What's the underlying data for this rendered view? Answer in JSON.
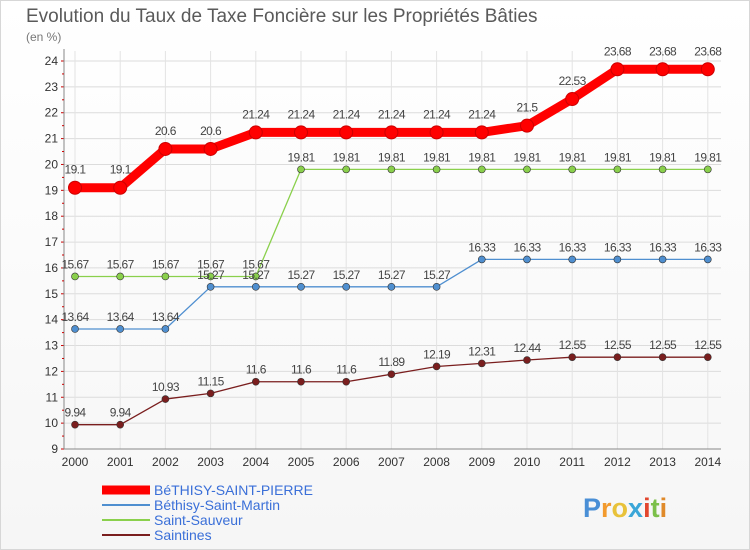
{
  "chart_data": {
    "type": "line",
    "title": "Evolution du Taux de Taxe Foncière sur les Propriétés Bâties",
    "unit_label": "(en %)",
    "xlabel": "",
    "ylabel": "",
    "x": [
      "2000",
      "2001",
      "2002",
      "2003",
      "2004",
      "2005",
      "2006",
      "2007",
      "2008",
      "2009",
      "2010",
      "2011",
      "2012",
      "2013",
      "2014"
    ],
    "ylim": [
      9,
      24
    ],
    "yticks": [
      9,
      10,
      11,
      12,
      13,
      14,
      15,
      16,
      17,
      18,
      19,
      20,
      21,
      22,
      23,
      24
    ],
    "grid": true,
    "series": [
      {
        "name": "BéTHISY-SAINT-PIERRE",
        "color": "#ff0000",
        "values": [
          19.1,
          19.1,
          20.6,
          20.6,
          21.24,
          21.24,
          21.24,
          21.24,
          21.24,
          21.24,
          21.5,
          22.53,
          23.68,
          23.68,
          23.68
        ],
        "labels": [
          "19.1",
          "19.1",
          "20.6",
          "20.6",
          "21.24",
          "21.24",
          "21.24",
          "21.24",
          "21.24",
          "21.24",
          "21.5",
          "22.53",
          "23.68",
          "23.68",
          "23.68"
        ]
      },
      {
        "name": "Béthisy-Saint-Martin",
        "color": "#4f8fd0",
        "values": [
          13.64,
          13.64,
          13.64,
          15.27,
          15.27,
          15.27,
          15.27,
          15.27,
          15.27,
          16.33,
          16.33,
          16.33,
          16.33,
          16.33,
          16.33
        ],
        "labels": [
          "13.64",
          "13.64",
          "13.64",
          "15.27",
          "15.27",
          "15.27",
          "15.27",
          "15.27",
          "15.27",
          "16.33",
          "16.33",
          "16.33",
          "16.33",
          "16.33",
          "16.33"
        ]
      },
      {
        "name": "Saint-Sauveur",
        "color": "#8ad04c",
        "values": [
          15.67,
          15.67,
          15.67,
          15.67,
          15.67,
          19.81,
          19.81,
          19.81,
          19.81,
          19.81,
          19.81,
          19.81,
          19.81,
          19.81,
          19.81
        ],
        "labels": [
          "15.67",
          "15.67",
          "15.67",
          "15.67",
          "15.67",
          "19.81",
          "19.81",
          "19.81",
          "19.81",
          "19.81",
          "19.81",
          "19.81",
          "19.81",
          "19.81",
          "19.81"
        ]
      },
      {
        "name": "Saintines",
        "color": "#7a1e1e",
        "values": [
          9.94,
          9.94,
          10.93,
          11.15,
          11.6,
          11.6,
          11.6,
          11.89,
          12.19,
          12.31,
          12.44,
          12.55,
          12.55,
          12.55,
          12.55
        ],
        "labels": [
          "9.94",
          "9.94",
          "10.93",
          "11.15",
          "11.6",
          "11.6",
          "11.6",
          "11.89",
          "12.19",
          "12.31",
          "12.44",
          "12.55",
          "12.55",
          "12.55",
          "12.55"
        ]
      }
    ],
    "legend_position": "bottom-left"
  },
  "logo": {
    "text": "Proxiti"
  }
}
